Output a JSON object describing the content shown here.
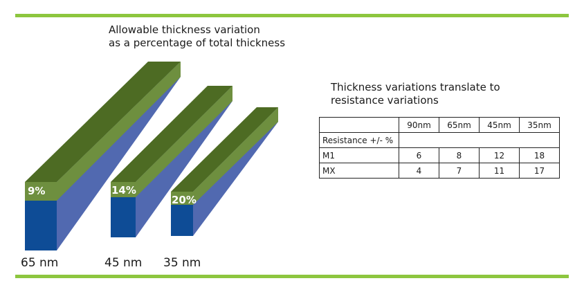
{
  "diagram": {
    "title_line1": "Allowable thickness variation",
    "title_line2": "as a percentage of total thickness",
    "bars": [
      {
        "node": "65 nm",
        "percent": "9%"
      },
      {
        "node": "45 nm",
        "percent": "14%"
      },
      {
        "node": "35 nm",
        "percent": "20%"
      }
    ],
    "colors": {
      "top_face": "#4d6b23",
      "front_band": "#6e8f3f",
      "side_face": "#5169b0",
      "front_base": "#0e4c96",
      "rule": "#8dc63f"
    }
  },
  "table": {
    "title_line1": "Thickness variations translate to",
    "title_line2": "resistance variations",
    "headers": [
      "",
      "90nm",
      "65nm",
      "45nm",
      "35nm"
    ],
    "section_label": "Resistance +/- %",
    "rows": [
      {
        "label": "M1",
        "values": [
          "6",
          "8",
          "12",
          "18"
        ]
      },
      {
        "label": "MX",
        "values": [
          "4",
          "7",
          "11",
          "17"
        ]
      }
    ]
  }
}
